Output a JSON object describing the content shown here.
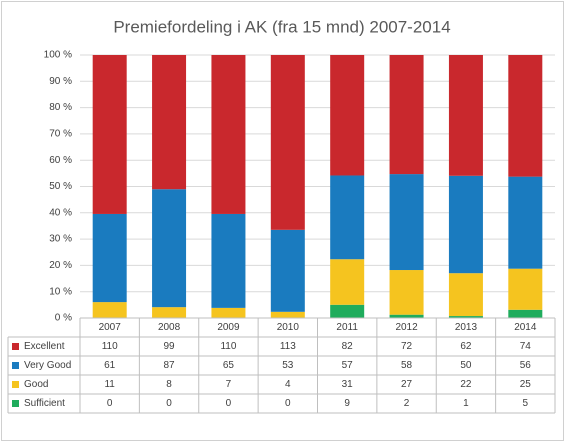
{
  "chart_data": {
    "type": "bar",
    "stacking": "percent",
    "title": "Premiefordeling i AK (fra 15 mnd) 2007-2014",
    "categories": [
      "2007",
      "2008",
      "2009",
      "2010",
      "2011",
      "2012",
      "2013",
      "2014"
    ],
    "series": [
      {
        "name": "Excellent",
        "color": "#c9282d",
        "values": [
          110,
          99,
          110,
          113,
          82,
          72,
          62,
          74
        ]
      },
      {
        "name": "Very Good",
        "color": "#1a7bbf",
        "values": [
          61,
          87,
          65,
          53,
          57,
          58,
          50,
          56
        ]
      },
      {
        "name": "Good",
        "color": "#f5c41f",
        "values": [
          11,
          8,
          7,
          4,
          31,
          27,
          22,
          25
        ]
      },
      {
        "name": "Sufficient",
        "color": "#1fac5c",
        "values": [
          0,
          0,
          0,
          0,
          9,
          2,
          1,
          5
        ]
      }
    ],
    "ylim": [
      0,
      100
    ],
    "yticks": [
      {
        "value": 0,
        "label": "0 %"
      },
      {
        "value": 10,
        "label": "10 %"
      },
      {
        "value": 20,
        "label": "20 %"
      },
      {
        "value": 30,
        "label": "30 %"
      },
      {
        "value": 40,
        "label": "40 %"
      },
      {
        "value": 50,
        "label": "50 %"
      },
      {
        "value": 60,
        "label": "60 %"
      },
      {
        "value": 70,
        "label": "70 %"
      },
      {
        "value": 80,
        "label": "80 %"
      },
      {
        "value": 90,
        "label": "90 %"
      },
      {
        "value": 100,
        "label": "100 %"
      }
    ],
    "grid": true
  }
}
